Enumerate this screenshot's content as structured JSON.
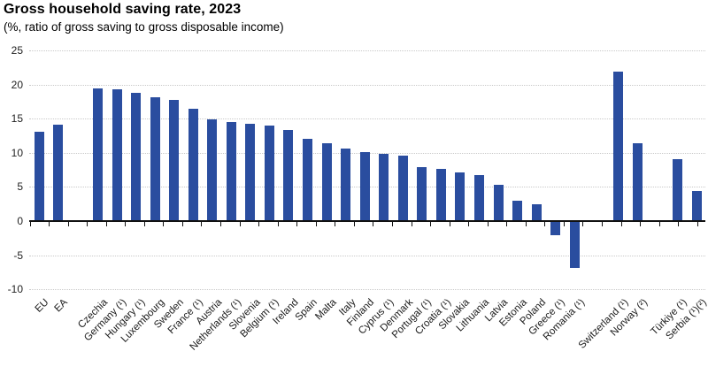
{
  "page": {
    "background": "#ffffff"
  },
  "chart_data": {
    "type": "bar",
    "title": "Gross household saving rate, 2023",
    "subtitle": "(%, ratio of gross saving to gross disposable income)",
    "unit": "%",
    "xlabel": "",
    "ylabel": "",
    "ylim": [
      -10,
      25
    ],
    "ytick_interval": 5,
    "ytick_labels": [
      "25",
      "20",
      "15",
      "10",
      "5",
      "0",
      "-5",
      "-10"
    ],
    "grid": "horizontal-dotted",
    "legend": "none",
    "bar_color": "#2a4d9f",
    "zero_line_color": "#111111",
    "groups": [
      {
        "name": "aggregates",
        "bars": [
          {
            "label": "EU",
            "value": 13.1
          },
          {
            "label": "EA",
            "value": 14.1
          }
        ]
      },
      {
        "name": "eu-members",
        "bars": [
          {
            "label": "Czechia",
            "value": 19.4
          },
          {
            "label": "Germany (¹)",
            "value": 19.3
          },
          {
            "label": "Hungary (¹)",
            "value": 18.8
          },
          {
            "label": "Luxembourg",
            "value": 18.1
          },
          {
            "label": "Sweden",
            "value": 17.8
          },
          {
            "label": "France (¹)",
            "value": 16.4
          },
          {
            "label": "Austria",
            "value": 14.9
          },
          {
            "label": "Netherlands (¹)",
            "value": 14.5
          },
          {
            "label": "Slovenia",
            "value": 14.2
          },
          {
            "label": "Belgium (¹)",
            "value": 14.0
          },
          {
            "label": "Ireland",
            "value": 13.4
          },
          {
            "label": "Spain",
            "value": 12.0
          },
          {
            "label": "Malta",
            "value": 11.4
          },
          {
            "label": "Italy",
            "value": 10.6
          },
          {
            "label": "Finland",
            "value": 10.1
          },
          {
            "label": "Cyprus (¹)",
            "value": 9.8
          },
          {
            "label": "Denmark",
            "value": 9.6
          },
          {
            "label": "Portugal (¹)",
            "value": 7.9
          },
          {
            "label": "Croatia (¹)",
            "value": 7.7
          },
          {
            "label": "Slovakia",
            "value": 7.1
          },
          {
            "label": "Lithuania",
            "value": 6.7
          },
          {
            "label": "Latvia",
            "value": 5.3
          },
          {
            "label": "Estonia",
            "value": 3.0
          },
          {
            "label": "Poland",
            "value": 2.4
          },
          {
            "label": "Greece (¹)",
            "value": -1.9
          },
          {
            "label": "Romania (¹)",
            "value": -6.7
          }
        ]
      },
      {
        "name": "efta",
        "bars": [
          {
            "label": "Switzerland (¹)",
            "value": 21.9
          },
          {
            "label": "Norway (²)",
            "value": 11.4
          }
        ]
      },
      {
        "name": "candidates",
        "bars": [
          {
            "label": "Türkiye (¹)",
            "value": 9.1
          },
          {
            "label": "Serbia (¹)(²)",
            "value": 4.4
          }
        ]
      }
    ]
  }
}
